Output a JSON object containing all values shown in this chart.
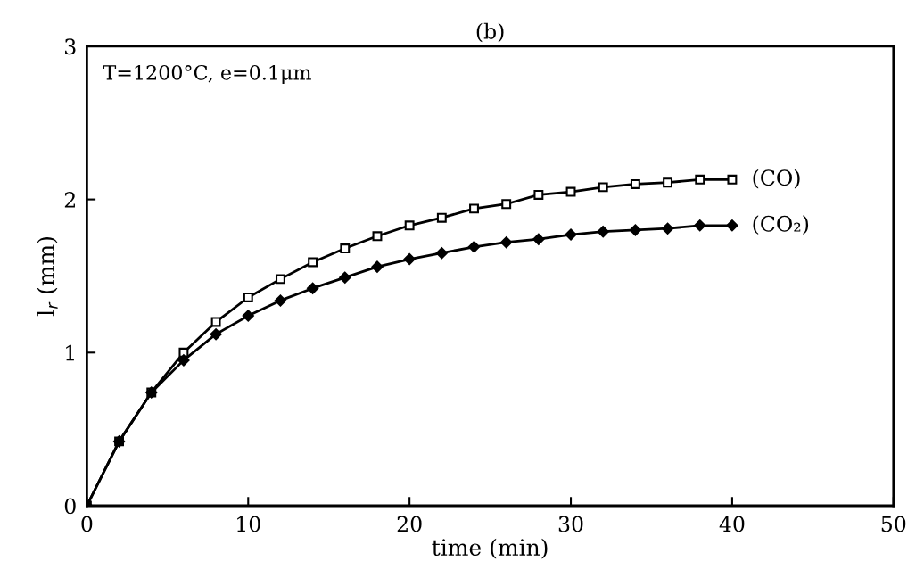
{
  "chart_data": {
    "type": "line",
    "title": "(b)",
    "xlabel": "time (min)",
    "ylabel": "l$_{r}$ (mm)",
    "annotations": [
      "T=1200°C, e=0.1μm"
    ],
    "x": [
      0,
      2,
      4,
      6,
      8,
      10,
      12,
      14,
      16,
      18,
      20,
      22,
      24,
      26,
      28,
      30,
      32,
      34,
      36,
      38,
      40
    ],
    "series": [
      {
        "name": "(CO)",
        "color": "#000000",
        "marker": "square",
        "values": [
          0,
          0.42,
          0.74,
          1.0,
          1.2,
          1.36,
          1.48,
          1.59,
          1.68,
          1.76,
          1.83,
          1.88,
          1.94,
          1.97,
          2.03,
          2.05,
          2.08,
          2.1,
          2.11,
          2.13,
          2.13
        ]
      },
      {
        "name": "(CO₂)",
        "color": "#000000",
        "marker": "diamond",
        "values": [
          0,
          0.42,
          0.74,
          0.95,
          1.12,
          1.24,
          1.34,
          1.42,
          1.49,
          1.56,
          1.61,
          1.65,
          1.69,
          1.72,
          1.74,
          1.77,
          1.79,
          1.8,
          1.81,
          1.83,
          1.83
        ]
      }
    ],
    "xlim": [
      0,
      50
    ],
    "xticks": [
      0,
      10,
      20,
      30,
      40,
      50
    ],
    "ylim": [
      0,
      3
    ],
    "yticks": [
      0,
      1,
      2,
      3
    ],
    "grid": false,
    "legend": false,
    "line_style": "solid"
  }
}
